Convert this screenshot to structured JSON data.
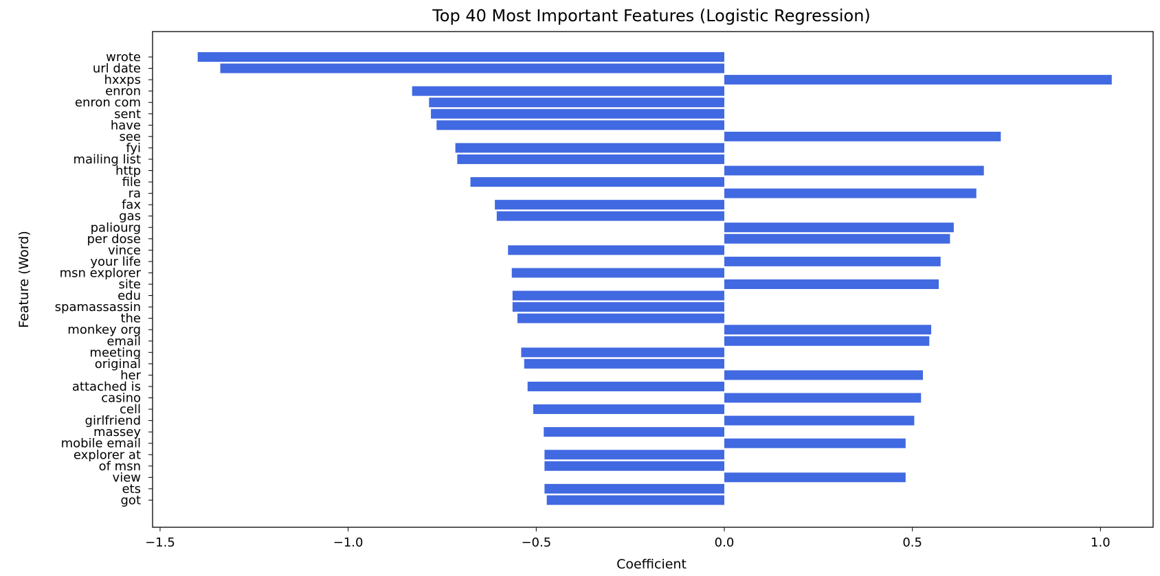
{
  "chart_data": {
    "type": "bar",
    "orientation": "horizontal",
    "title": "Top 40 Most Important Features (Logistic Regression)",
    "xlabel": "Coefficient",
    "ylabel": "Feature (Word)",
    "xlim": [
      -1.52,
      1.14
    ],
    "xticks": [
      -1.5,
      -1.0,
      -0.5,
      0.0,
      0.5,
      1.0
    ],
    "xtick_labels": [
      "−1.5",
      "−1.0",
      "−0.5",
      "0.0",
      "0.5",
      "1.0"
    ],
    "grid": false,
    "bar_color": "#4169E1",
    "categories": [
      "wrote",
      "url date",
      "hxxps",
      "enron",
      "enron com",
      "sent",
      "have",
      "see",
      "fyi",
      "mailing list",
      "http",
      "file",
      "ra",
      "fax",
      "gas",
      "paliourg",
      "per dose",
      "vince",
      "your life",
      "msn explorer",
      "site",
      "edu",
      "spamassassin",
      "the",
      "monkey org",
      "email",
      "meeting",
      "original",
      "her",
      "attached is",
      "casino",
      "cell",
      "girlfriend",
      "massey",
      "mobile email",
      "explorer at",
      "of msn",
      "view",
      "ets",
      "got"
    ],
    "values": [
      -1.4,
      -1.34,
      1.03,
      -0.83,
      -0.785,
      -0.78,
      -0.765,
      0.735,
      -0.715,
      -0.71,
      0.69,
      -0.675,
      0.67,
      -0.61,
      -0.605,
      0.61,
      0.6,
      -0.575,
      0.575,
      -0.565,
      0.57,
      -0.563,
      -0.563,
      -0.55,
      0.55,
      0.545,
      -0.54,
      -0.532,
      0.528,
      -0.523,
      0.523,
      -0.508,
      0.505,
      -0.48,
      0.482,
      -0.478,
      -0.478,
      0.482,
      -0.478,
      -0.472
    ]
  }
}
